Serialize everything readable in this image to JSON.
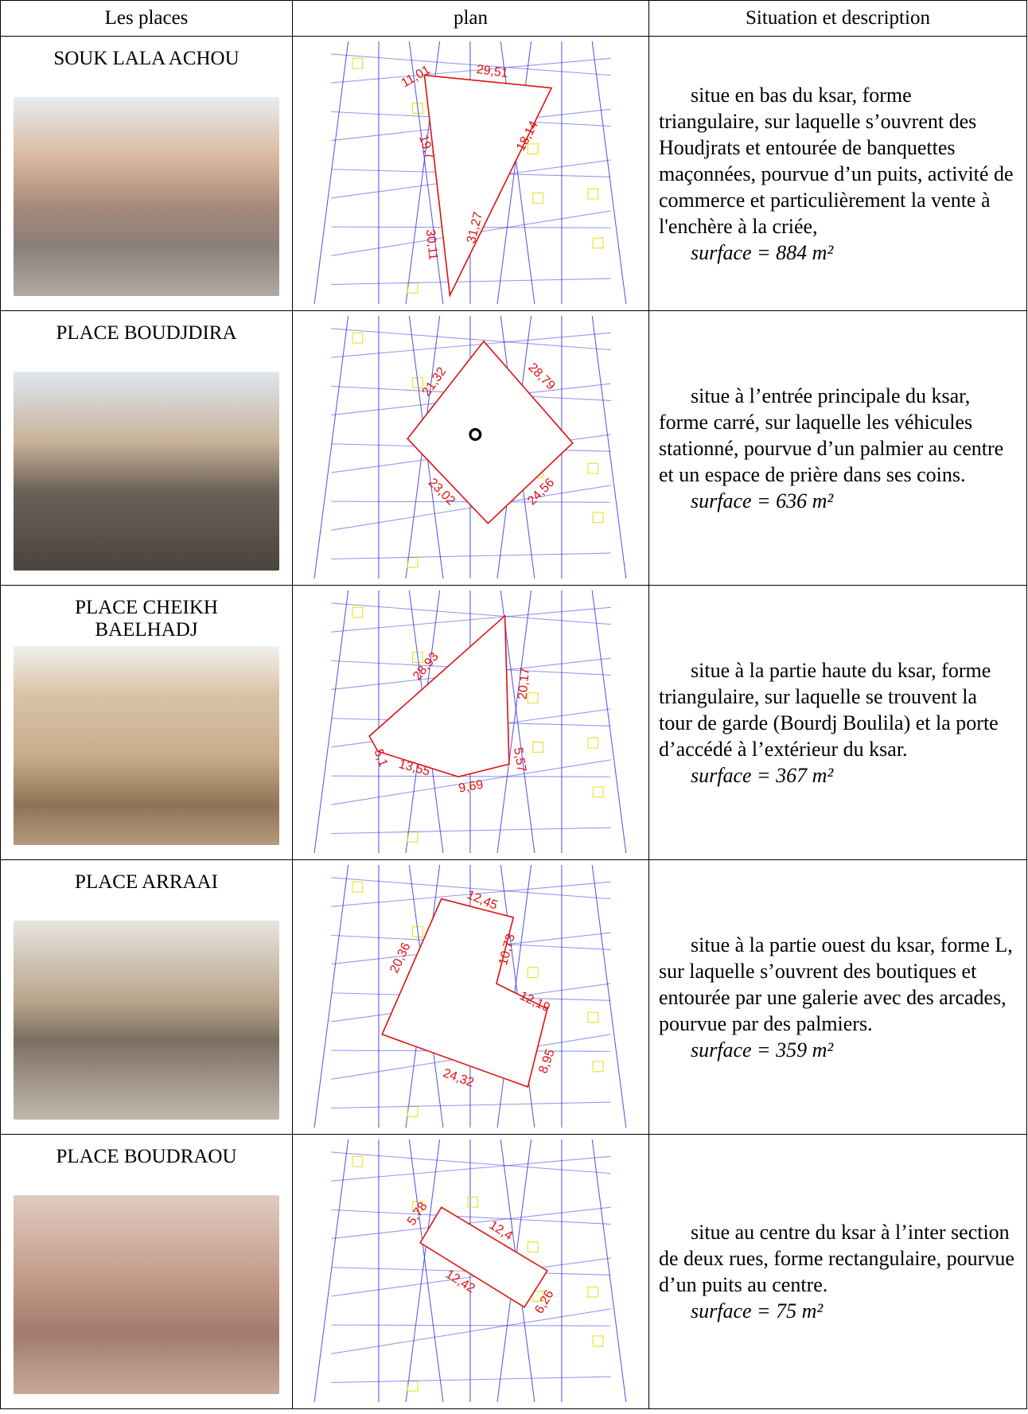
{
  "table": {
    "headers": [
      "Les places",
      "plan",
      "Situation et description"
    ],
    "rows": [
      {
        "name": "SOUK LALA ACHOU",
        "plan_labels": [
          "11,01",
          "29,51",
          "19,7",
          "18,14",
          "30,11",
          "31,27"
        ],
        "description": "situe en bas du ksar, forme triangulaire, sur laquelle s’ouvrent des Houdjrats et entourée de banquettes maçonnées, pourvue d’un puits, activité de commerce et particulièrement la vente à l'enchère à la criée,",
        "surface": "surface = 884 m²"
      },
      {
        "name": "PLACE BOUDJDIRA",
        "plan_labels": [
          "21,32",
          "28,79",
          "23,02",
          "24,56"
        ],
        "description": "situe à l’entrée principale du ksar, forme carré, sur laquelle les véhicules stationné, pourvue d’un palmier au centre et un espace de prière dans ses coins.",
        "surface": "surface  = 636 m²"
      },
      {
        "name": "PLACE CHEIKH BAELHADJ",
        "plan_labels": [
          "28,93",
          "20,17",
          "5,1",
          "13,55",
          "9,69",
          "5,57"
        ],
        "description": "situe à la partie haute du ksar, forme triangulaire, sur laquelle se trouvent la tour de garde (Bourdj Boulila) et la porte d’accédé à l’extérieur du ksar.",
        "surface": "surface = 367 m²"
      },
      {
        "name": "PLACE ARRAAI",
        "plan_labels": [
          "12,45",
          "20,36",
          "10,73",
          "12,19",
          "24,32",
          "8,95"
        ],
        "description": "situe à la partie ouest du ksar, forme L, sur laquelle s’ouvrent des boutiques et entourée par une galerie avec des arcades, pourvue par des palmiers.",
        "surface": "surface  = 359 m²"
      },
      {
        "name": "PLACE BOUDRAOU",
        "plan_labels": [
          "5,78",
          "12,4",
          "12,42",
          "6,26"
        ],
        "description": "situe au centre du ksar à l’inter section de deux rues, forme rectangulaire, pourvue d’un puits au centre.",
        "surface": "surface  = 75 m²"
      }
    ]
  }
}
